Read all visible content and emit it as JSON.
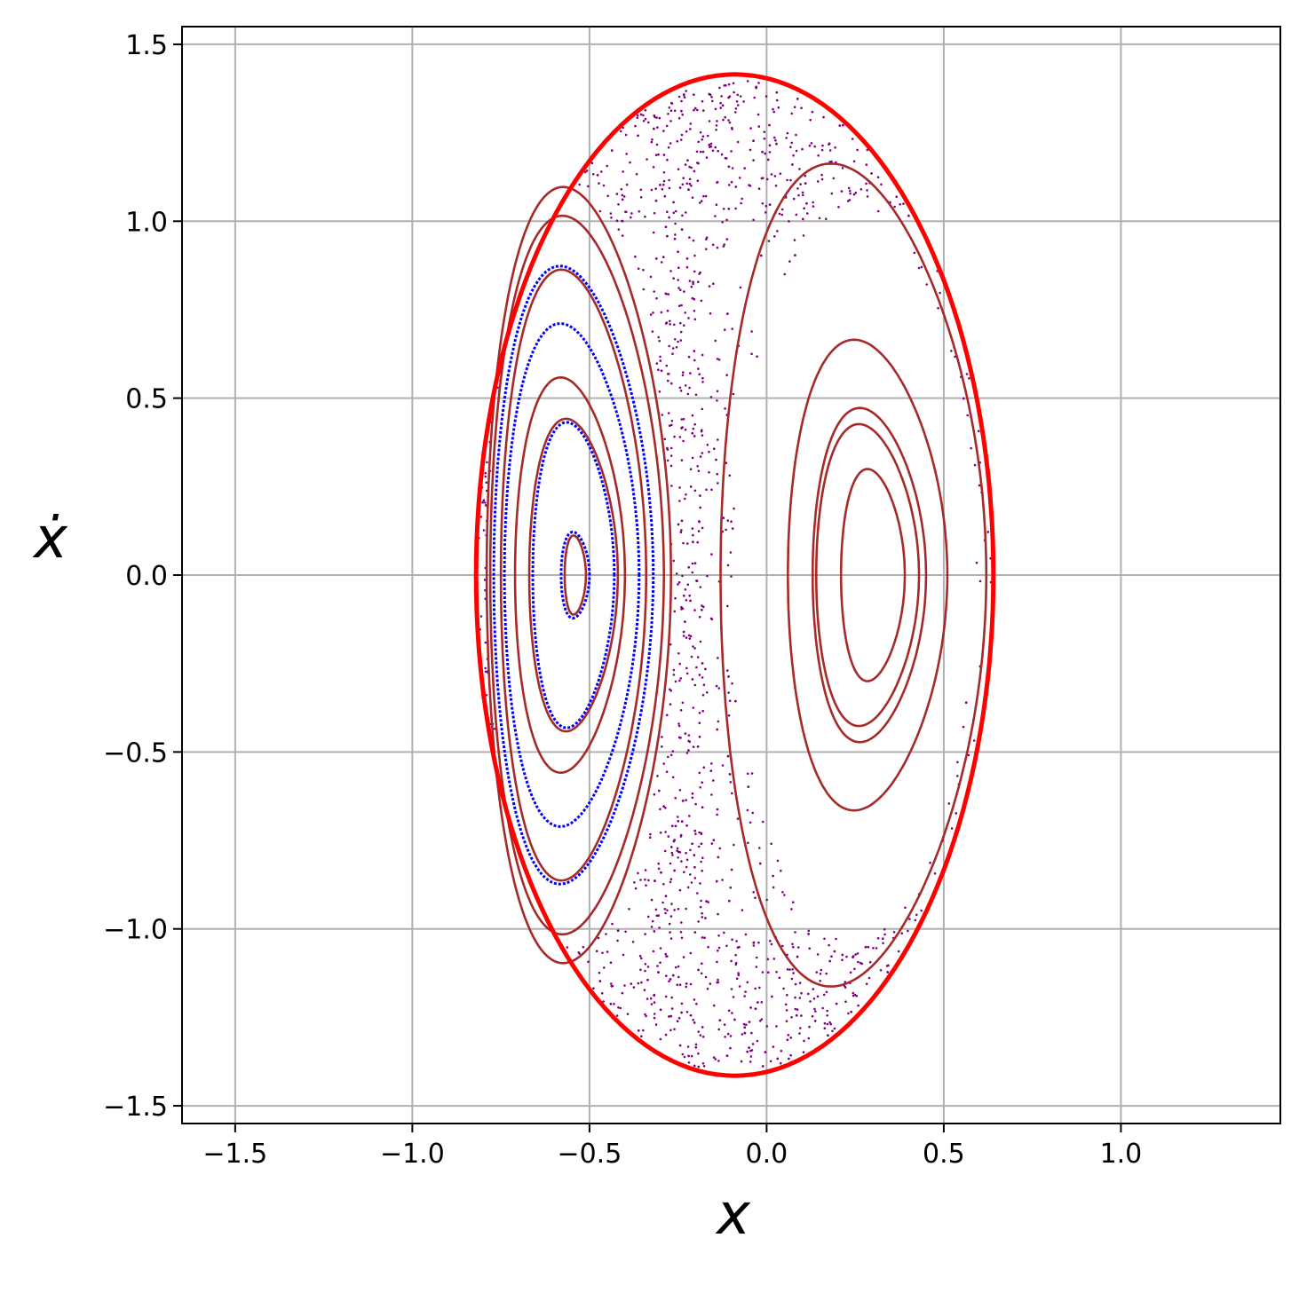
{
  "chart_data": {
    "type": "scatter",
    "title": "",
    "xlabel": "x",
    "ylabel": "ẋ",
    "xlim": [
      -1.65,
      1.45
    ],
    "ylim": [
      -1.55,
      1.55
    ],
    "grid": true,
    "x_ticks": [
      -1.5,
      -1.0,
      -0.5,
      0.0,
      0.5,
      1.0
    ],
    "y_ticks": [
      -1.5,
      -1.0,
      -0.5,
      0.0,
      0.5,
      1.0,
      1.5
    ],
    "x_tick_labels": [
      "−1.5",
      "−1.0",
      "−0.5",
      "0.0",
      "0.5",
      "1.0"
    ],
    "y_tick_labels": [
      "−1.5",
      "−1.0",
      "−0.5",
      "0.0",
      "0.5",
      "1.0",
      "1.5"
    ],
    "colors": {
      "boundary": "#ff0000",
      "orbits": "#a52a2a",
      "blue_orbits": "#0000ff",
      "chaotic_points": "#800080",
      "grid": "#b0b0b0"
    },
    "boundary": {
      "xmin": -0.82,
      "xmax": 0.64,
      "vmax": 1.415
    },
    "left_island_center": {
      "x": -0.54,
      "v": 0.0
    },
    "right_island_center": {
      "x": 0.29,
      "v": 0.0
    },
    "orbits": [
      {
        "xmin": -0.58,
        "xmax": -0.5,
        "vmax": 0.12,
        "color": "#0000ff"
      },
      {
        "xmin": -0.57,
        "xmax": -0.51,
        "vmax": 0.11,
        "color": "#a52a2a"
      },
      {
        "xmin": -0.66,
        "xmax": -0.43,
        "vmax": 0.425,
        "color": "#0000ff"
      },
      {
        "xmin": -0.67,
        "xmax": -0.42,
        "vmax": 0.435,
        "color": "#a52a2a"
      },
      {
        "xmin": -0.71,
        "xmax": -0.4,
        "vmax": 0.55,
        "color": "#a52a2a"
      },
      {
        "xmin": -0.74,
        "xmax": -0.36,
        "vmax": 0.7,
        "color": "#0000ff"
      },
      {
        "xmin": -0.75,
        "xmax": -0.34,
        "vmax": 0.85,
        "color": "#a52a2a"
      },
      {
        "xmin": -0.77,
        "xmax": -0.32,
        "vmax": 0.86,
        "color": "#0000ff"
      },
      {
        "xmin": -0.78,
        "xmax": -0.29,
        "vmax": 1.0,
        "color": "#a52a2a"
      },
      {
        "xmin": -0.79,
        "xmax": -0.27,
        "vmax": 1.08,
        "color": "#a52a2a"
      },
      {
        "xmin": -0.13,
        "xmax": 0.62,
        "vmax": 1.145,
        "color": "#a52a2a"
      },
      {
        "xmin": 0.06,
        "xmax": 0.51,
        "vmax": 0.655,
        "color": "#a52a2a"
      },
      {
        "xmin": 0.13,
        "xmax": 0.45,
        "vmax": 0.465,
        "color": "#a52a2a"
      },
      {
        "xmin": 0.14,
        "xmax": 0.43,
        "vmax": 0.42,
        "color": "#a52a2a"
      },
      {
        "xmin": 0.21,
        "xmax": 0.39,
        "vmax": 0.295,
        "color": "#a52a2a"
      }
    ]
  }
}
